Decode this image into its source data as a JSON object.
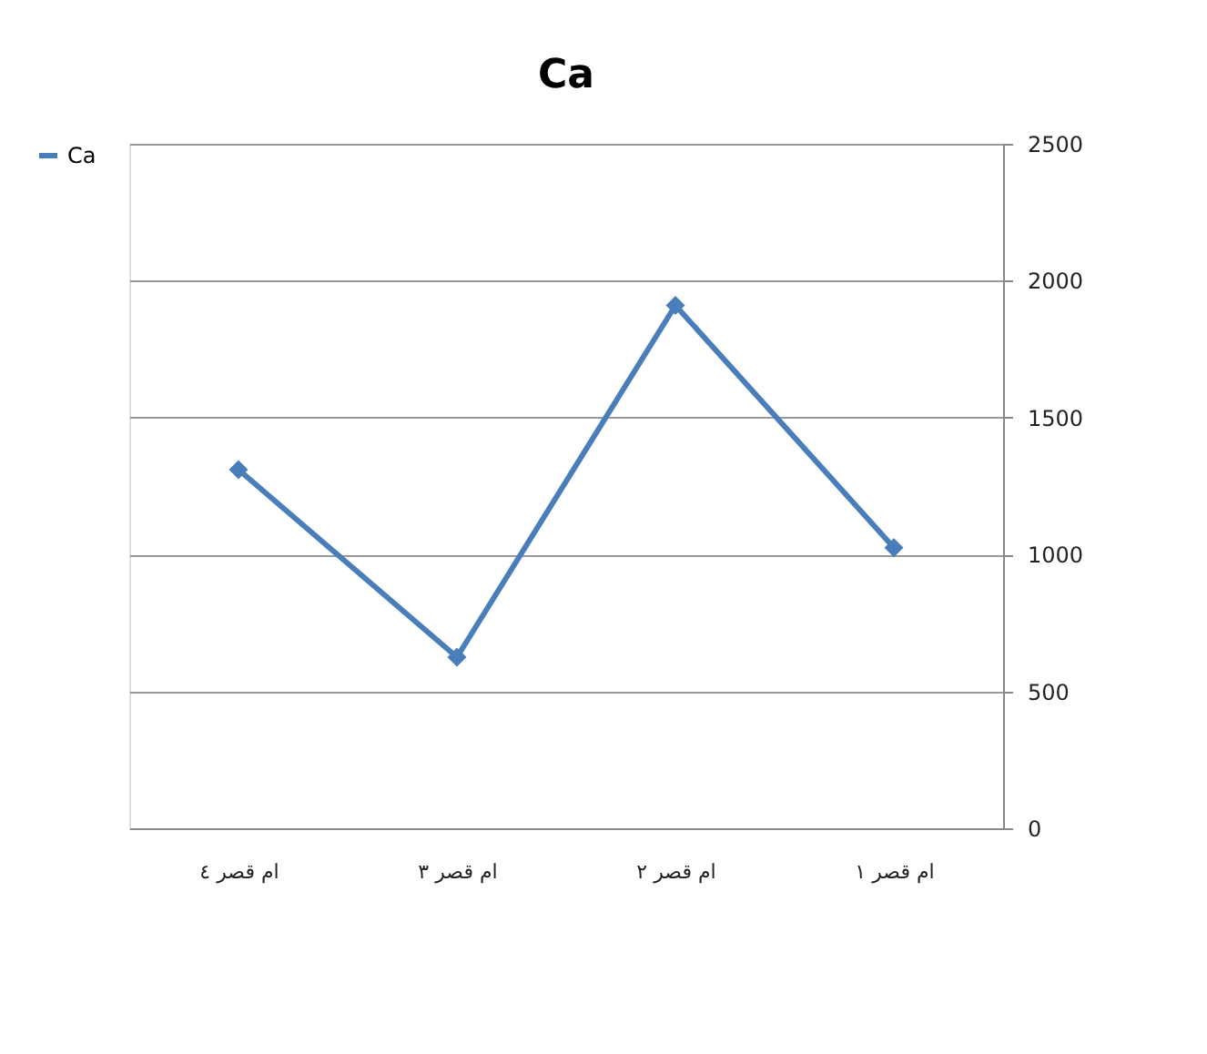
{
  "chart_data": {
    "type": "line",
    "title": "Ca",
    "categories": [
      "ام قصر ٤",
      "ام قصر ٣",
      "ام قصر ٢",
      "ام قصر ١"
    ],
    "series": [
      {
        "name": "Ca",
        "color": "#4a7ebb",
        "values": [
          1310,
          625,
          1910,
          1025
        ]
      }
    ],
    "ylim": [
      0,
      2500
    ],
    "yticks": [
      0,
      500,
      1000,
      1500,
      2000,
      2500
    ],
    "grid": "y",
    "legend": "left",
    "marker": "diamond",
    "line_style": "solid"
  }
}
